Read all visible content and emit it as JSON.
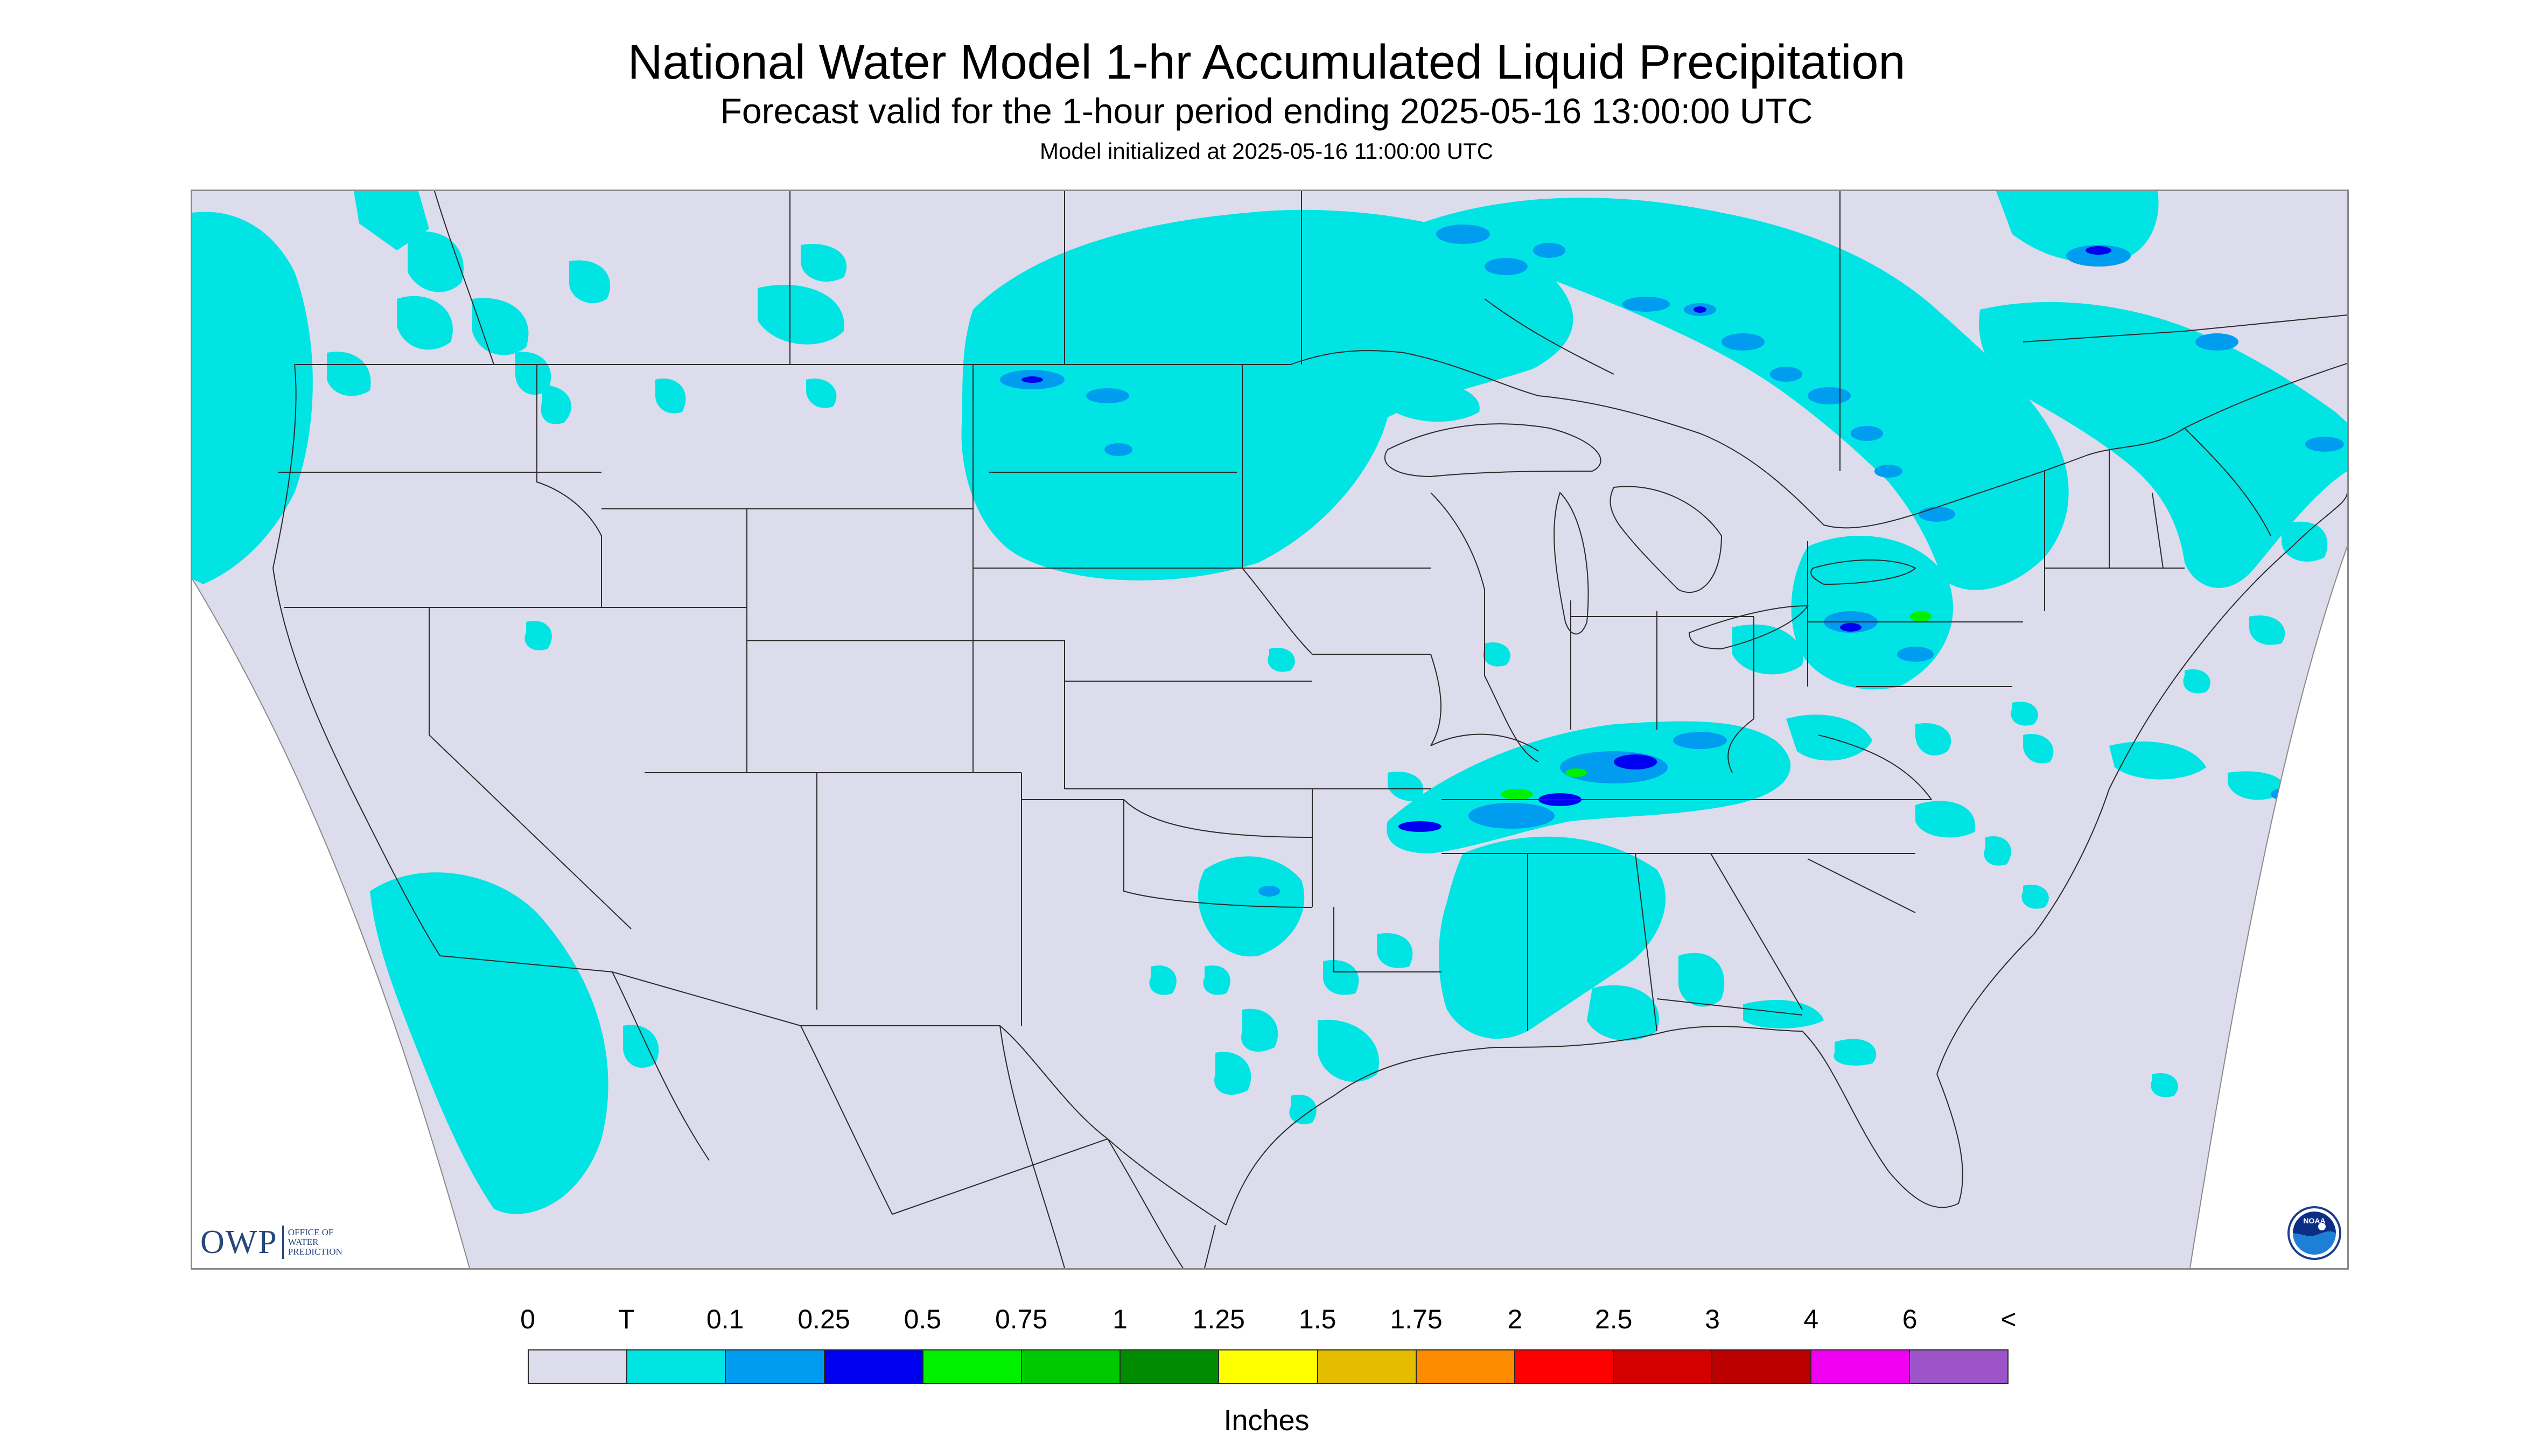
{
  "header": {
    "title": "National Water Model 1-hr Accumulated Liquid Precipitation",
    "subtitle": "Forecast valid for the 1-hour period ending 2025-05-16 13:00:00 UTC",
    "initialized": "Model initialized at 2025-05-16 11:00:00 UTC"
  },
  "map": {
    "background_color": "#dcdcec",
    "outside_color": "#ffffff",
    "boundary_color": "#2b2b2b",
    "precip_colors": {
      "trace": "#00e4e4",
      "light": "#009cf0",
      "moderate": "#0000f0",
      "heavy": "#00f000"
    }
  },
  "logos": {
    "owp_main": "OWP",
    "owp_line1": "OFFICE OF",
    "owp_line2": "WATER",
    "owp_line3": "PREDICTION",
    "noaa_text": "NOAA",
    "noaa_icon": "noaa-emblem-icon"
  },
  "legend": {
    "labels": [
      "0",
      "T",
      "0.1",
      "0.25",
      "0.5",
      "0.75",
      "1",
      "1.25",
      "1.5",
      "1.75",
      "2",
      "2.5",
      "3",
      "4",
      "6",
      "<"
    ],
    "colors": [
      "#dcdcec",
      "#00e4e4",
      "#009cf0",
      "#0000f0",
      "#00f000",
      "#00c800",
      "#008c00",
      "#ffff00",
      "#e4bc00",
      "#ff8c00",
      "#ff0000",
      "#d40000",
      "#bc0000",
      "#f000f0",
      "#9c54c8"
    ],
    "units": "Inches"
  }
}
